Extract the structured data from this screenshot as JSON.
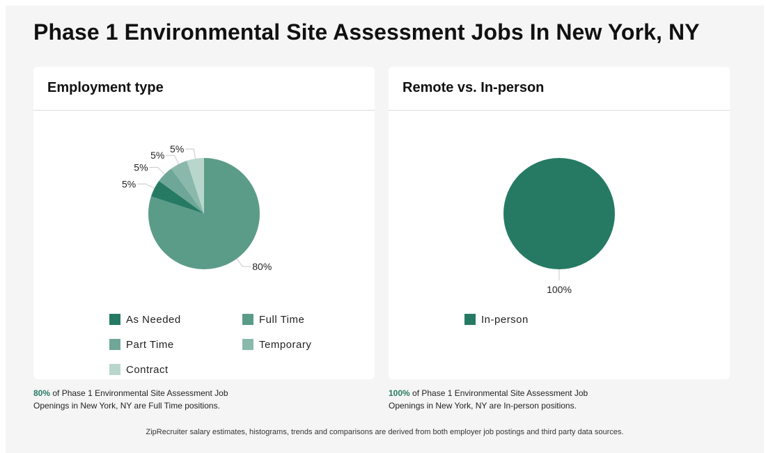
{
  "page_title": "Phase 1 Environmental Site Assessment Jobs In New York, NY",
  "chart_data": [
    {
      "type": "pie",
      "title": "Employment type",
      "slices": [
        {
          "name": "Full Time",
          "value": 80,
          "label": "80%",
          "color": "#5b9c88"
        },
        {
          "name": "As Needed",
          "value": 5,
          "label": "5%",
          "color": "#267a63"
        },
        {
          "name": "Part Time",
          "value": 5,
          "label": "5%",
          "color": "#6ea797"
        },
        {
          "name": "Temporary",
          "value": 5,
          "label": "5%",
          "color": "#8ab9ab"
        },
        {
          "name": "Contract",
          "value": 5,
          "label": "5%",
          "color": "#b9d6cd"
        }
      ],
      "legend": [
        "As Needed",
        "Full Time",
        "Part Time",
        "Temporary",
        "Contract"
      ],
      "legend_placement": "bottom"
    },
    {
      "type": "pie",
      "title": "Remote vs. In-person",
      "slices": [
        {
          "name": "In-person",
          "value": 100,
          "label": "100%",
          "color": "#267a63"
        }
      ],
      "legend": [
        "In-person"
      ],
      "legend_placement": "bottom"
    }
  ],
  "captions": {
    "employment": {
      "pct": "80%",
      "text": " of Phase 1 Environmental Site Assessment Job Openings in New York, NY are Full Time positions."
    },
    "remote": {
      "pct": "100%",
      "text": " of Phase 1 Environmental Site Assessment Job Openings in New York, NY are In-person positions."
    }
  },
  "footer": "ZipRecruiter salary estimates, histograms, trends and comparisons are derived from both employer job postings and third party data sources."
}
